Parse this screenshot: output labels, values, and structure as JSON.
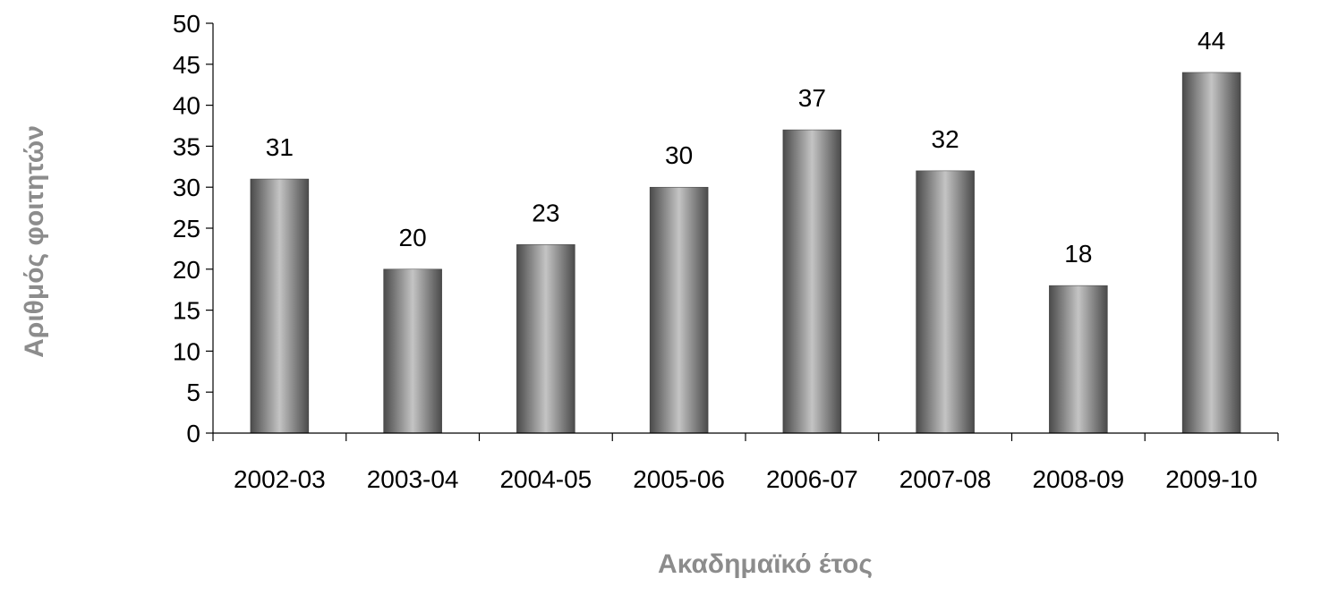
{
  "chart_data": {
    "type": "bar",
    "title": "",
    "xlabel": "Ακαδημαϊκό έτος",
    "ylabel": "Αριθμός φοιτητών",
    "categories": [
      "2002-03",
      "2003-04",
      "2004-05",
      "2005-06",
      "2006-07",
      "2007-08",
      "2008-09",
      "2009-10"
    ],
    "values": [
      31,
      20,
      23,
      30,
      37,
      32,
      18,
      44
    ],
    "ylim": [
      0,
      50
    ],
    "yticks": [
      "0",
      "5",
      "10",
      "15",
      "20",
      "25",
      "30",
      "35",
      "40",
      "45",
      "50"
    ],
    "data_labels": [
      "31",
      "20",
      "23",
      "30",
      "37",
      "32",
      "18",
      "44"
    ],
    "grid": false,
    "legend": "none",
    "colors": {
      "bar_dark": "#4a4a4a",
      "bar_light": "#c4c4c4",
      "axis": "#000000",
      "axis_title": "#8c8c8c"
    }
  }
}
